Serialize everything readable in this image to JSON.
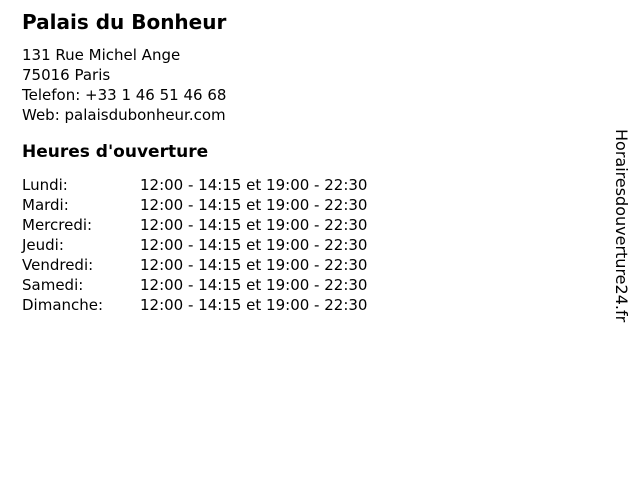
{
  "colors": {
    "background": "#ffffff",
    "text": "#000000"
  },
  "business": {
    "name": "Palais du Bonheur",
    "address_line1": "131 Rue Michel Ange",
    "address_line2": "75016 Paris",
    "phone_line": "Telefon: +33 1 46 51 46 68",
    "web_line": "Web: palaisdubonheur.com"
  },
  "hours": {
    "heading": "Heures d'ouverture",
    "rows": [
      {
        "day": "Lundi:",
        "time": "12:00 - 14:15 et 19:00 - 22:30"
      },
      {
        "day": "Mardi:",
        "time": "12:00 - 14:15 et 19:00 - 22:30"
      },
      {
        "day": "Mercredi:",
        "time": "12:00 - 14:15 et 19:00 - 22:30"
      },
      {
        "day": "Jeudi:",
        "time": "12:00 - 14:15 et 19:00 - 22:30"
      },
      {
        "day": "Vendredi:",
        "time": "12:00 - 14:15 et 19:00 - 22:30"
      },
      {
        "day": "Samedi:",
        "time": "12:00 - 14:15 et 19:00 - 22:30"
      },
      {
        "day": "Dimanche:",
        "time": "12:00 - 14:15 et 19:00 - 22:30"
      }
    ]
  },
  "watermark": {
    "text": "Horairesdouverture24.fr"
  }
}
